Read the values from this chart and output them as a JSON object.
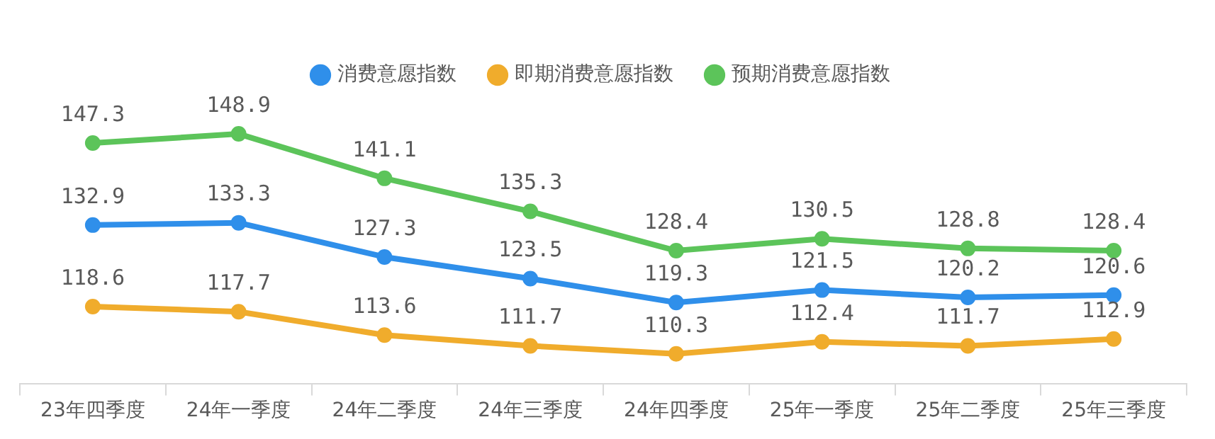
{
  "chart_data": {
    "type": "line",
    "categories": [
      "23年四季度",
      "24年一季度",
      "24年二季度",
      "24年三季度",
      "24年四季度",
      "25年一季度",
      "25年二季度",
      "25年三季度"
    ],
    "series": [
      {
        "name": "消费意愿指数",
        "color": "#2f8fea",
        "values": [
          132.9,
          133.3,
          127.3,
          123.5,
          119.3,
          121.5,
          120.2,
          120.6
        ]
      },
      {
        "name": "即期消费意愿指数",
        "color": "#f0ac2c",
        "values": [
          118.6,
          117.7,
          113.6,
          111.7,
          110.3,
          112.4,
          111.7,
          112.9
        ]
      },
      {
        "name": "预期消费意愿指数",
        "color": "#5cc45a",
        "values": [
          147.3,
          148.9,
          141.1,
          135.3,
          128.4,
          130.5,
          128.8,
          128.4
        ]
      }
    ],
    "tick_labels": "x",
    "data_labels": true,
    "legend": "top",
    "marker": "circle",
    "line_style": "solid",
    "grid": false
  }
}
